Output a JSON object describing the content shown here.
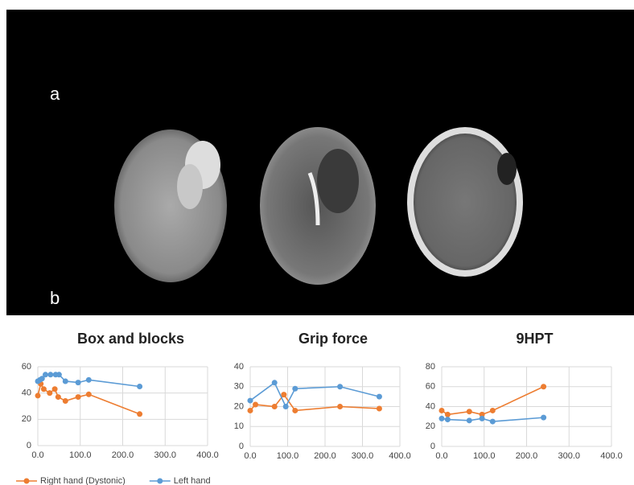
{
  "panel_labels": [
    "a",
    "b"
  ],
  "chart_data": [
    {
      "type": "line",
      "title": "Box and blocks",
      "series": [
        {
          "name": "Right hand (Dystonic)",
          "color": "#ed7d31",
          "x": [
            0,
            7,
            14,
            28,
            40,
            48,
            65,
            95,
            120,
            240
          ],
          "values": [
            38,
            47,
            43,
            40,
            43,
            37,
            34,
            37,
            39,
            24
          ]
        },
        {
          "name": "Left hand",
          "color": "#5b9bd5",
          "x": [
            0,
            5,
            10,
            18,
            30,
            42,
            50,
            65,
            95,
            120,
            240
          ],
          "values": [
            49,
            50,
            51,
            54,
            54,
            54,
            54,
            49,
            48,
            50,
            45
          ]
        }
      ],
      "xlim": [
        0,
        400
      ],
      "xticks": [
        {
          "value": 0,
          "label": "0.0"
        },
        {
          "value": 100,
          "label": "100.0"
        },
        {
          "value": 200,
          "label": "200.0"
        },
        {
          "value": 300,
          "label": "300.0"
        },
        {
          "value": 400,
          "label": "400.0"
        }
      ],
      "ylim": [
        0,
        60
      ],
      "yticks": [
        0,
        20,
        40,
        60
      ],
      "grid": true,
      "legend": "bottom"
    },
    {
      "type": "line",
      "title": "Grip force",
      "series": [
        {
          "color": "#ed7d31",
          "x": [
            0,
            14,
            65,
            90,
            120,
            240,
            345
          ],
          "values": [
            18,
            21,
            20,
            26,
            18,
            20,
            19
          ]
        },
        {
          "color": "#5b9bd5",
          "x": [
            0,
            65,
            95,
            120,
            240,
            345
          ],
          "values": [
            23,
            32,
            20,
            29,
            30,
            25
          ]
        }
      ],
      "xlim": [
        0,
        400
      ],
      "xticks": [
        {
          "value": 0,
          "label": "0.0"
        },
        {
          "value": 100,
          "label": "100.0"
        },
        {
          "value": 200,
          "label": "200.0"
        },
        {
          "value": 300,
          "label": "300.0"
        },
        {
          "value": 400,
          "label": "400.0"
        }
      ],
      "ylim": [
        0,
        40
      ],
      "yticks": [
        0,
        10,
        20,
        30,
        40
      ],
      "grid": true
    },
    {
      "type": "line",
      "title": "9HPT",
      "series": [
        {
          "color": "#ed7d31",
          "x": [
            0,
            14,
            65,
            95,
            120,
            240
          ],
          "values": [
            36,
            32,
            35,
            32,
            36,
            60
          ]
        },
        {
          "color": "#5b9bd5",
          "x": [
            0,
            14,
            65,
            95,
            120,
            240
          ],
          "values": [
            28,
            27,
            26,
            28,
            25,
            29
          ]
        }
      ],
      "xlim": [
        0,
        400
      ],
      "xticks": [
        {
          "value": 0,
          "label": "0.0"
        },
        {
          "value": 100,
          "label": "100.0"
        },
        {
          "value": 200,
          "label": "200.0"
        },
        {
          "value": 300,
          "label": "300.0"
        },
        {
          "value": 400,
          "label": "400.0"
        }
      ],
      "ylim": [
        0,
        80
      ],
      "yticks": [
        0,
        20,
        40,
        60,
        80
      ],
      "grid": true
    }
  ]
}
